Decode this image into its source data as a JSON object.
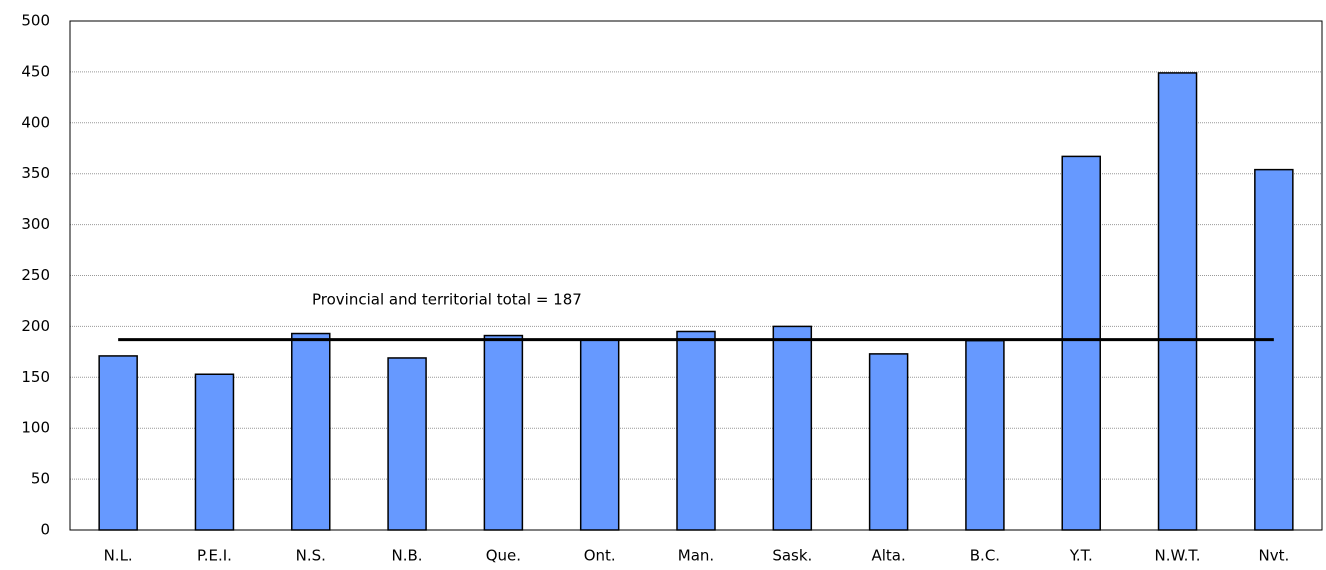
{
  "chart_data": {
    "type": "bar",
    "categories": [
      "N.L.",
      "P.E.I.",
      "N.S.",
      "N.B.",
      "Que.",
      "Ont.",
      "Man.",
      "Sask.",
      "Alta.",
      "B.C.",
      "Y.T.",
      "N.W.T.",
      "Nvt."
    ],
    "values": [
      171,
      153,
      193,
      169,
      191,
      187,
      195,
      200,
      173,
      186,
      367,
      449,
      354
    ],
    "color": "#6699ff",
    "ylim": [
      0,
      500
    ],
    "yticks": [
      0,
      50,
      100,
      150,
      200,
      250,
      300,
      350,
      400,
      450,
      500
    ],
    "grid": true,
    "reference_line": {
      "value": 187,
      "label": "Provincial and territorial total = 187"
    }
  }
}
